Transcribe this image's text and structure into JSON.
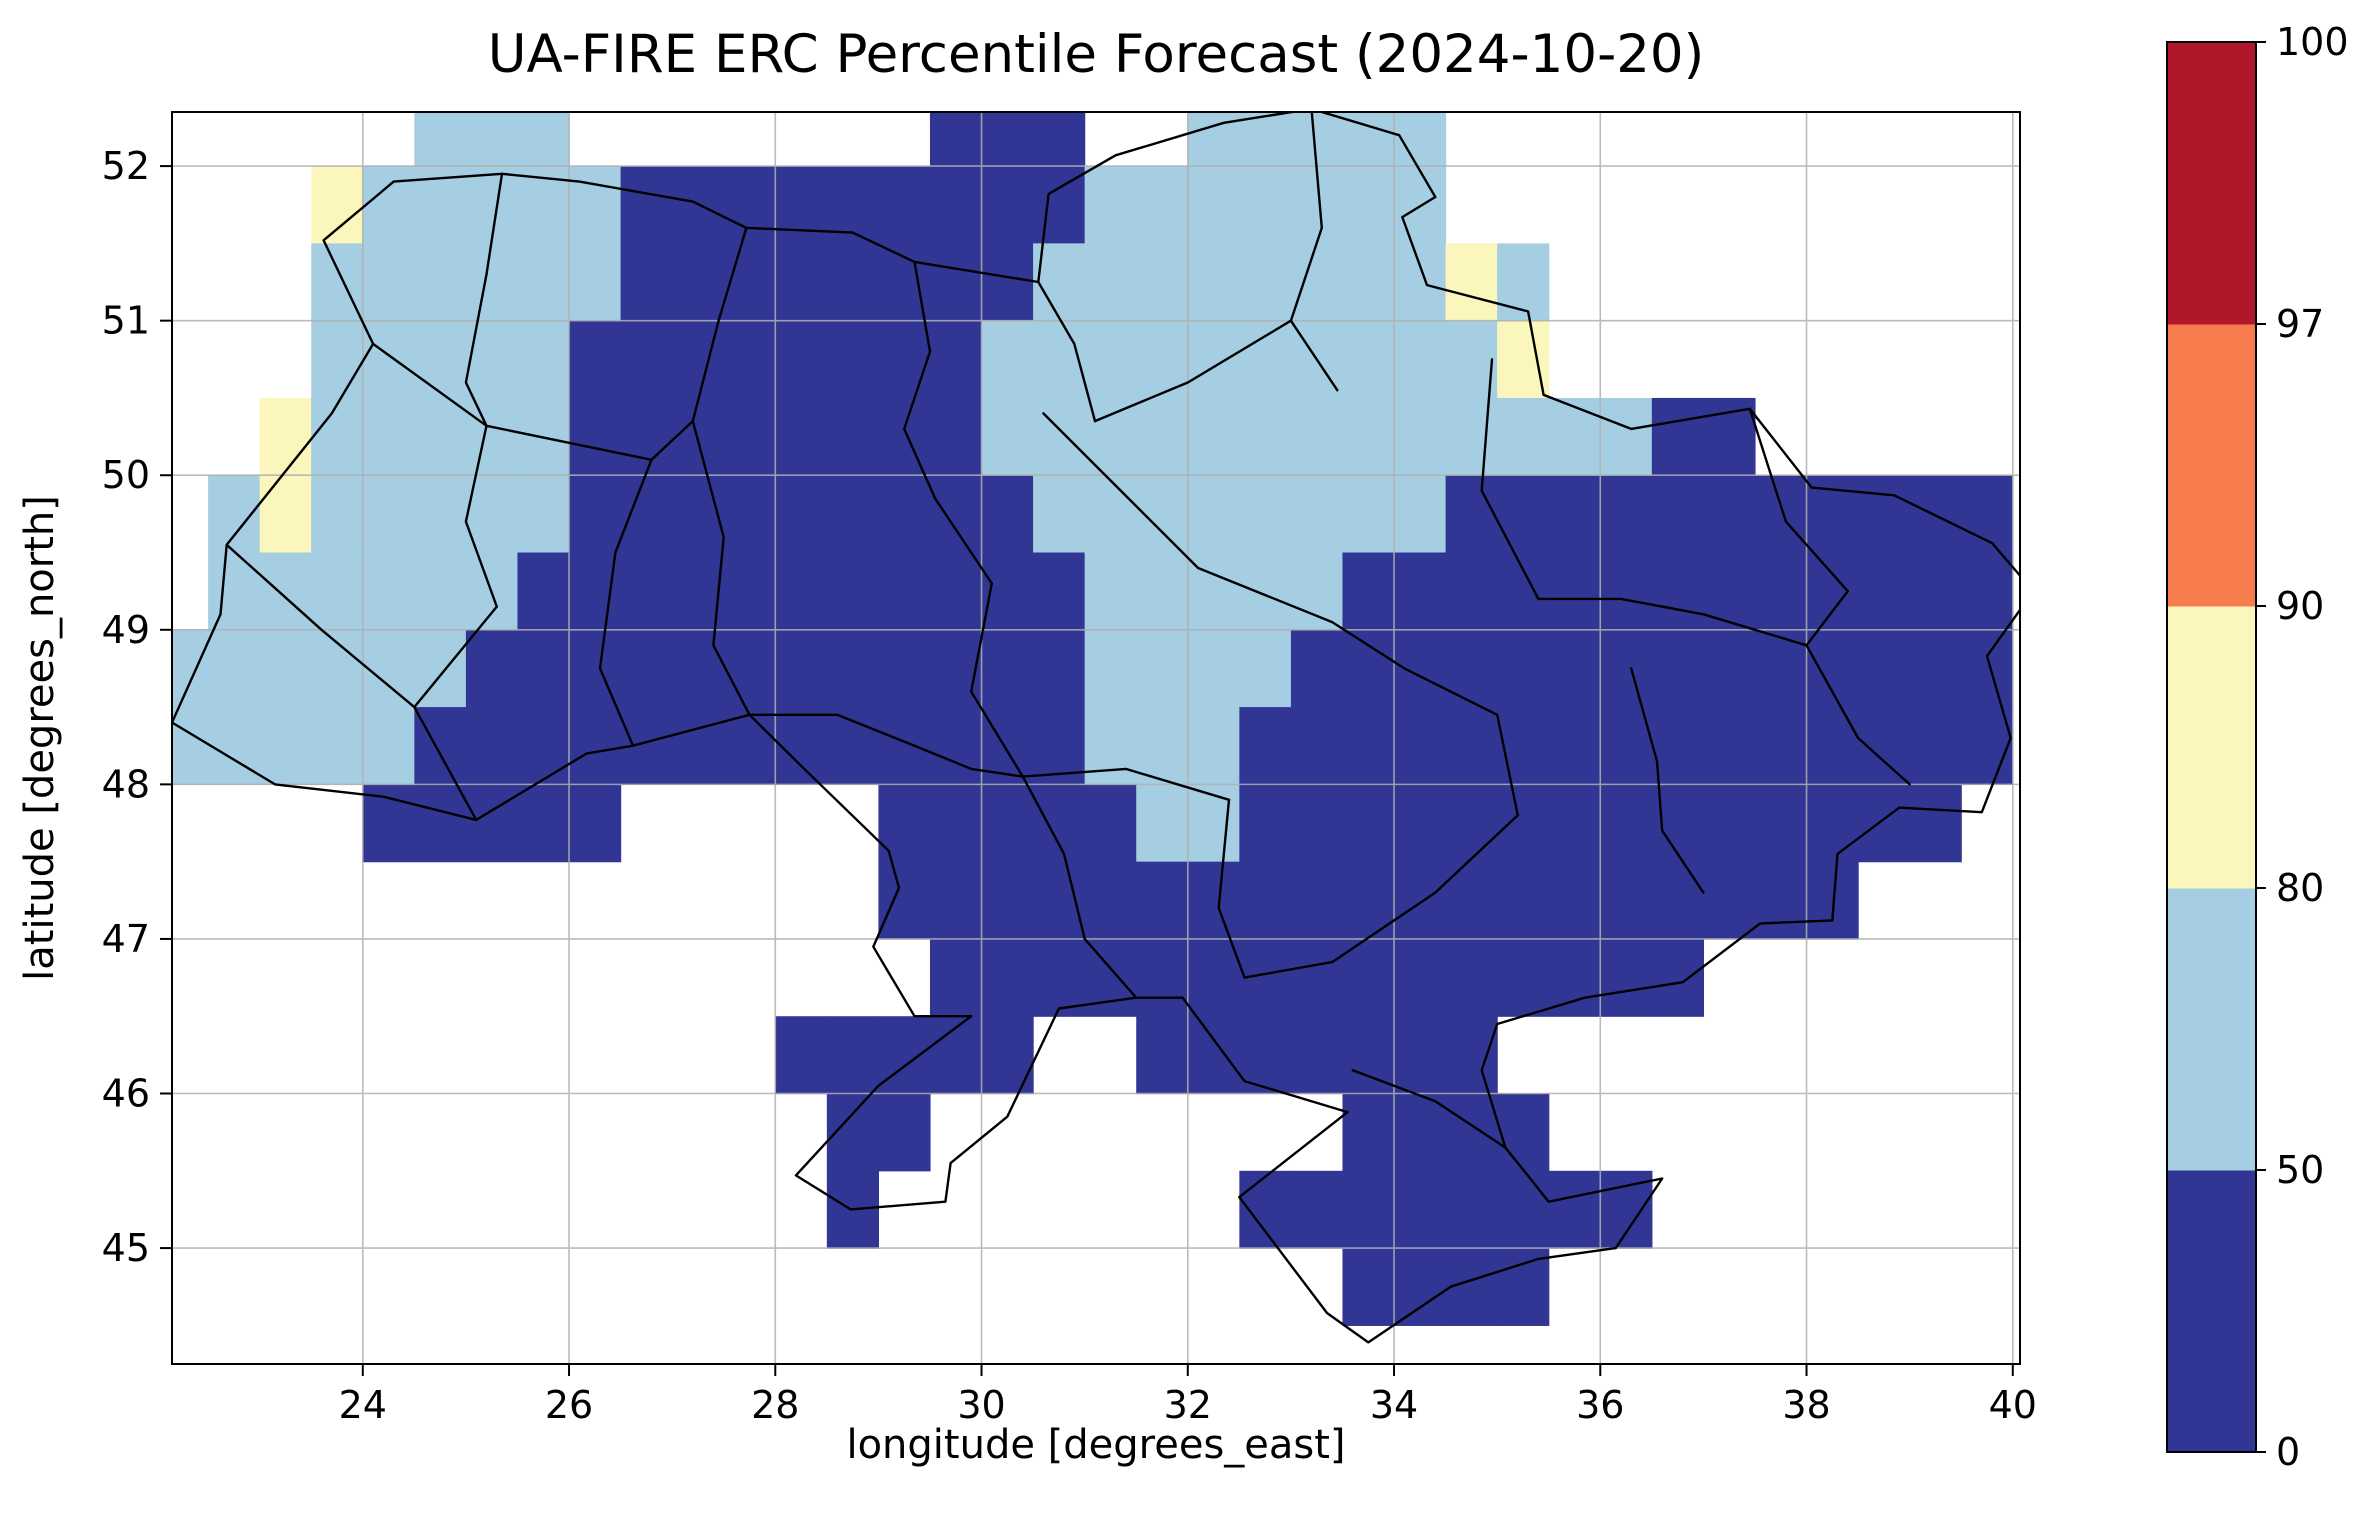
{
  "chart_data": {
    "type": "heatmap",
    "title": "UA-FIRE ERC Percentile Forecast (2024-10-20)",
    "xlabel": "longitude [degrees_east]",
    "ylabel": "latitude [degrees_north]",
    "xlim": [
      22.15,
      40.07
    ],
    "ylim": [
      44.25,
      52.35
    ],
    "x_ticks": [
      24,
      26,
      28,
      30,
      32,
      34,
      36,
      38,
      40
    ],
    "y_ticks": [
      45,
      46,
      47,
      48,
      49,
      50,
      51,
      52
    ],
    "grid_on": true,
    "gridline_color": "#b0b0b0",
    "colorbar": {
      "levels": [
        0,
        50,
        80,
        90,
        97,
        100
      ],
      "colors": [
        "#313695",
        "#a5cee3",
        "#faf6bc",
        "#f67b4d",
        "#b0172a"
      ],
      "spacing": "uniform"
    },
    "value_bands_present": {
      "1": "0-50",
      "2": "50-80",
      "3": "80-90"
    },
    "grid": {
      "lon_start": 22.0,
      "lat_start": 52.5,
      "cell_deg": 0.5,
      "rows": [
        ".....222.......111..22222............",
        "...3222221111111112222222............",
        "...222222111111112222222232..........",
        "...222221111111122222222223..........",
        "..32222211111111222222222222211......",
        ".23222221111111112222222211111111111.",
        ".22222211111111111222221111111111111.",
        "222222111111111111222211111111111111.",
        "222221111111111111222111111111111111.",
        "....11111.....111112211111111111111..",
        "..............1111111111111111111....",
        "...............111111111111111.......",
        "............11111..1111111...........",
        ".............11........1111..........",
        ".............1.......11111111........",
        ".......................1111.........."
      ]
    },
    "boundaries": {
      "outline": [
        [
          23.62,
          51.52
        ],
        [
          24.3,
          51.9
        ],
        [
          25.35,
          51.95
        ],
        [
          26.1,
          51.9
        ],
        [
          27.2,
          51.77
        ],
        [
          27.72,
          51.6
        ],
        [
          28.75,
          51.57
        ],
        [
          29.35,
          51.38
        ],
        [
          30.55,
          51.25
        ],
        [
          30.65,
          51.82
        ],
        [
          31.3,
          52.07
        ],
        [
          32.35,
          52.28
        ],
        [
          33.2,
          52.37
        ],
        [
          34.05,
          52.2
        ],
        [
          34.4,
          51.8
        ],
        [
          34.08,
          51.67
        ],
        [
          34.32,
          51.23
        ],
        [
          35.3,
          51.06
        ],
        [
          35.45,
          50.52
        ],
        [
          36.3,
          50.3
        ],
        [
          37.45,
          50.43
        ],
        [
          38.05,
          49.92
        ],
        [
          38.85,
          49.87
        ],
        [
          39.8,
          49.56
        ],
        [
          40.2,
          49.25
        ],
        [
          39.75,
          48.83
        ],
        [
          39.98,
          48.3
        ],
        [
          39.7,
          47.82
        ],
        [
          38.9,
          47.85
        ],
        [
          38.3,
          47.55
        ],
        [
          38.25,
          47.12
        ],
        [
          37.55,
          47.1
        ],
        [
          36.8,
          46.72
        ],
        [
          35.85,
          46.62
        ],
        [
          35.0,
          46.45
        ],
        [
          34.85,
          46.15
        ],
        [
          35.08,
          45.65
        ],
        [
          35.5,
          45.3
        ],
        [
          36.6,
          45.45
        ],
        [
          36.15,
          45.0
        ],
        [
          35.4,
          44.93
        ],
        [
          34.55,
          44.75
        ],
        [
          33.75,
          44.39
        ],
        [
          33.35,
          44.58
        ],
        [
          32.5,
          45.33
        ],
        [
          33.55,
          45.88
        ],
        [
          32.55,
          46.08
        ],
        [
          31.95,
          46.62
        ],
        [
          31.5,
          46.62
        ],
        [
          30.75,
          46.55
        ],
        [
          30.25,
          45.85
        ],
        [
          29.7,
          45.55
        ],
        [
          29.65,
          45.3
        ],
        [
          28.73,
          45.25
        ],
        [
          28.2,
          45.47
        ],
        [
          29.0,
          46.05
        ],
        [
          29.9,
          46.5
        ],
        [
          29.35,
          46.5
        ],
        [
          28.95,
          46.95
        ],
        [
          29.2,
          47.33
        ],
        [
          29.1,
          47.57
        ],
        [
          28.25,
          48.12
        ],
        [
          27.75,
          48.45
        ],
        [
          26.62,
          48.25
        ],
        [
          26.17,
          48.2
        ],
        [
          25.1,
          47.77
        ],
        [
          24.2,
          47.92
        ],
        [
          23.15,
          48.0
        ],
        [
          22.15,
          48.4
        ],
        [
          22.62,
          49.1
        ],
        [
          22.68,
          49.55
        ],
        [
          23.7,
          50.4
        ],
        [
          24.1,
          50.85
        ],
        [
          23.62,
          51.52
        ]
      ],
      "internal": [
        [
          [
            25.35,
            51.95
          ],
          [
            25.2,
            51.3
          ],
          [
            25.0,
            50.6
          ],
          [
            25.2,
            50.32
          ]
        ],
        [
          [
            27.72,
            51.6
          ],
          [
            27.45,
            51.0
          ],
          [
            27.2,
            50.35
          ]
        ],
        [
          [
            29.35,
            51.38
          ],
          [
            29.5,
            50.8
          ],
          [
            29.25,
            50.3
          ],
          [
            29.55,
            49.85
          ]
        ],
        [
          [
            30.55,
            51.25
          ],
          [
            30.9,
            50.85
          ],
          [
            31.1,
            50.35
          ]
        ],
        [
          [
            33.2,
            52.37
          ],
          [
            33.3,
            51.6
          ],
          [
            33.0,
            51.0
          ],
          [
            33.45,
            50.55
          ]
        ],
        [
          [
            24.1,
            50.85
          ],
          [
            25.2,
            50.32
          ],
          [
            26.8,
            50.1
          ],
          [
            27.2,
            50.35
          ]
        ],
        [
          [
            25.2,
            50.32
          ],
          [
            25.0,
            49.7
          ],
          [
            25.3,
            49.15
          ],
          [
            24.5,
            48.5
          ]
        ],
        [
          [
            26.8,
            50.1
          ],
          [
            26.45,
            49.5
          ],
          [
            26.3,
            48.75
          ],
          [
            26.62,
            48.25
          ]
        ],
        [
          [
            22.68,
            49.55
          ],
          [
            23.6,
            49.0
          ],
          [
            24.5,
            48.5
          ],
          [
            25.1,
            47.77
          ]
        ],
        [
          [
            27.2,
            50.35
          ],
          [
            27.5,
            49.6
          ],
          [
            27.4,
            48.9
          ],
          [
            27.75,
            48.45
          ]
        ],
        [
          [
            29.55,
            49.85
          ],
          [
            30.1,
            49.3
          ],
          [
            29.9,
            48.6
          ],
          [
            30.4,
            48.05
          ]
        ],
        [
          [
            30.6,
            50.4
          ],
          [
            31.5,
            49.8
          ],
          [
            32.1,
            49.4
          ],
          [
            33.4,
            49.05
          ],
          [
            34.1,
            48.75
          ],
          [
            35.0,
            48.45
          ],
          [
            35.2,
            47.8
          ],
          [
            34.4,
            47.3
          ],
          [
            33.4,
            46.85
          ],
          [
            32.55,
            46.75
          ]
        ],
        [
          [
            31.1,
            50.35
          ],
          [
            32.0,
            50.6
          ],
          [
            33.0,
            51.0
          ]
        ],
        [
          [
            34.95,
            50.75
          ],
          [
            34.85,
            49.9
          ],
          [
            35.4,
            49.2
          ]
        ],
        [
          [
            37.45,
            50.43
          ],
          [
            37.8,
            49.7
          ],
          [
            38.4,
            49.25
          ],
          [
            38.0,
            48.9
          ]
        ],
        [
          [
            35.4,
            49.2
          ],
          [
            36.2,
            49.2
          ],
          [
            37.0,
            49.1
          ],
          [
            38.0,
            48.9
          ]
        ],
        [
          [
            38.0,
            48.9
          ],
          [
            38.5,
            48.3
          ],
          [
            39.0,
            48.0
          ]
        ],
        [
          [
            36.3,
            48.75
          ],
          [
            36.55,
            48.15
          ],
          [
            36.6,
            47.7
          ],
          [
            37.0,
            47.3
          ]
        ],
        [
          [
            30.4,
            48.05
          ],
          [
            31.4,
            48.1
          ],
          [
            32.4,
            47.9
          ]
        ],
        [
          [
            30.4,
            48.05
          ],
          [
            30.8,
            47.55
          ],
          [
            31.0,
            47.0
          ],
          [
            31.5,
            46.62
          ]
        ],
        [
          [
            32.4,
            47.9
          ],
          [
            32.3,
            47.2
          ],
          [
            32.55,
            46.75
          ]
        ],
        [
          [
            33.6,
            46.15
          ],
          [
            34.4,
            45.95
          ],
          [
            35.08,
            45.65
          ]
        ],
        [
          [
            27.75,
            48.45
          ],
          [
            28.6,
            48.45
          ],
          [
            29.35,
            48.25
          ],
          [
            29.9,
            48.1
          ],
          [
            30.4,
            48.05
          ]
        ]
      ]
    }
  }
}
